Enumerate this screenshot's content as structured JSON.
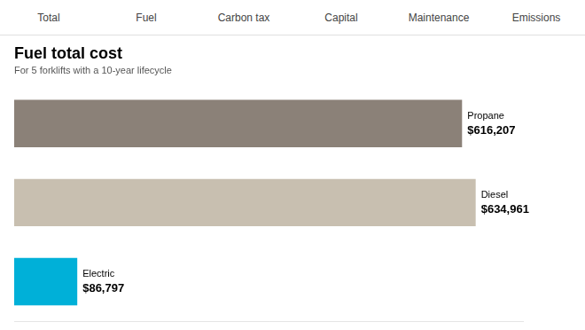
{
  "chart_data": {
    "type": "bar",
    "orientation": "horizontal",
    "title": "Fuel total cost",
    "subtitle": "For 5 forklifts with a 10-year lifecycle",
    "categories": [
      "Propane",
      "Diesel",
      "Electric"
    ],
    "values": [
      616207,
      634961,
      86797
    ],
    "value_labels": [
      "$616,207",
      "$634,961",
      "$86,797"
    ],
    "colors": [
      "#8b8178",
      "#c8bfb0",
      "#00b0d8"
    ],
    "xlim": [
      0,
      700000
    ],
    "data_labels": true,
    "tick_labels": false,
    "grid": false,
    "annotations": [
      "Total",
      "Fuel",
      "Carbon tax",
      "Capital",
      "Maintenance",
      "Emissions"
    ]
  }
}
